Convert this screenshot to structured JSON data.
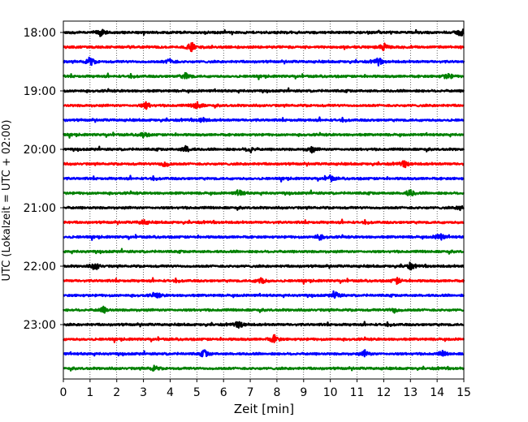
{
  "chart_data": {
    "type": "line",
    "title": "",
    "xlabel": "Zeit  [min]",
    "ylabel": "UTC (Lokalzeit = UTC + 02:00)",
    "xlim": [
      0,
      15
    ],
    "x_ticks": [
      "0",
      "1",
      "2",
      "3",
      "4",
      "5",
      "6",
      "7",
      "8",
      "9",
      "10",
      "11",
      "12",
      "13",
      "14",
      "15"
    ],
    "y_ticks": [
      "18:00",
      "19:00",
      "20:00",
      "21:00",
      "22:00",
      "23:00"
    ],
    "y_tick_hours": [
      0,
      1,
      2,
      3,
      4,
      5
    ],
    "trace_interval_min": 15,
    "start": "18:00",
    "end": "23:45",
    "trace_count": 24,
    "colors": [
      "#000000",
      "#ff0000",
      "#0000ff",
      "#008000"
    ],
    "grid": "vertical dotted lines at each minute",
    "events": [
      {
        "trace": 0,
        "minute": 1.4,
        "amp": 1.0
      },
      {
        "trace": 0,
        "minute": 14.9,
        "amp": 1.2
      },
      {
        "trace": 1,
        "minute": 4.8,
        "amp": 1.1
      },
      {
        "trace": 1,
        "minute": 12.0,
        "amp": 0.9
      },
      {
        "trace": 2,
        "minute": 1.0,
        "amp": 1.3
      },
      {
        "trace": 2,
        "minute": 4.0,
        "amp": 0.8
      },
      {
        "trace": 2,
        "minute": 11.8,
        "amp": 0.9
      },
      {
        "trace": 3,
        "minute": 4.6,
        "amp": 1.0
      },
      {
        "trace": 3,
        "minute": 14.4,
        "amp": 0.9
      },
      {
        "trace": 5,
        "minute": 3.1,
        "amp": 0.9
      },
      {
        "trace": 5,
        "minute": 5.0,
        "amp": 1.1
      },
      {
        "trace": 6,
        "minute": 5.2,
        "amp": 0.6
      },
      {
        "trace": 7,
        "minute": 3.0,
        "amp": 0.7
      },
      {
        "trace": 8,
        "minute": 4.6,
        "amp": 0.9
      },
      {
        "trace": 8,
        "minute": 7.0,
        "amp": 0.9
      },
      {
        "trace": 8,
        "minute": 9.3,
        "amp": 0.9
      },
      {
        "trace": 9,
        "minute": 3.8,
        "amp": 0.9
      },
      {
        "trace": 9,
        "minute": 12.8,
        "amp": 0.8
      },
      {
        "trace": 10,
        "minute": 10.0,
        "amp": 0.8
      },
      {
        "trace": 11,
        "minute": 6.6,
        "amp": 0.8
      },
      {
        "trace": 11,
        "minute": 13.0,
        "amp": 1.0
      },
      {
        "trace": 12,
        "minute": 14.9,
        "amp": 0.8
      },
      {
        "trace": 13,
        "minute": 3.0,
        "amp": 0.7
      },
      {
        "trace": 14,
        "minute": 9.6,
        "amp": 0.9
      },
      {
        "trace": 14,
        "minute": 14.1,
        "amp": 1.1
      },
      {
        "trace": 16,
        "minute": 1.2,
        "amp": 1.2
      },
      {
        "trace": 16,
        "minute": 13.0,
        "amp": 0.9
      },
      {
        "trace": 17,
        "minute": 7.4,
        "amp": 1.0
      },
      {
        "trace": 17,
        "minute": 12.5,
        "amp": 0.8
      },
      {
        "trace": 18,
        "minute": 3.5,
        "amp": 0.7
      },
      {
        "trace": 18,
        "minute": 10.2,
        "amp": 0.9
      },
      {
        "trace": 19,
        "minute": 1.5,
        "amp": 0.8
      },
      {
        "trace": 19,
        "minute": 12.4,
        "amp": 0.7
      },
      {
        "trace": 20,
        "minute": 6.6,
        "amp": 0.9
      },
      {
        "trace": 21,
        "minute": 7.9,
        "amp": 1.1
      },
      {
        "trace": 22,
        "minute": 5.3,
        "amp": 1.1
      },
      {
        "trace": 22,
        "minute": 11.3,
        "amp": 0.9
      },
      {
        "trace": 22,
        "minute": 14.2,
        "amp": 0.7
      },
      {
        "trace": 23,
        "minute": 3.4,
        "amp": 0.7
      }
    ]
  }
}
